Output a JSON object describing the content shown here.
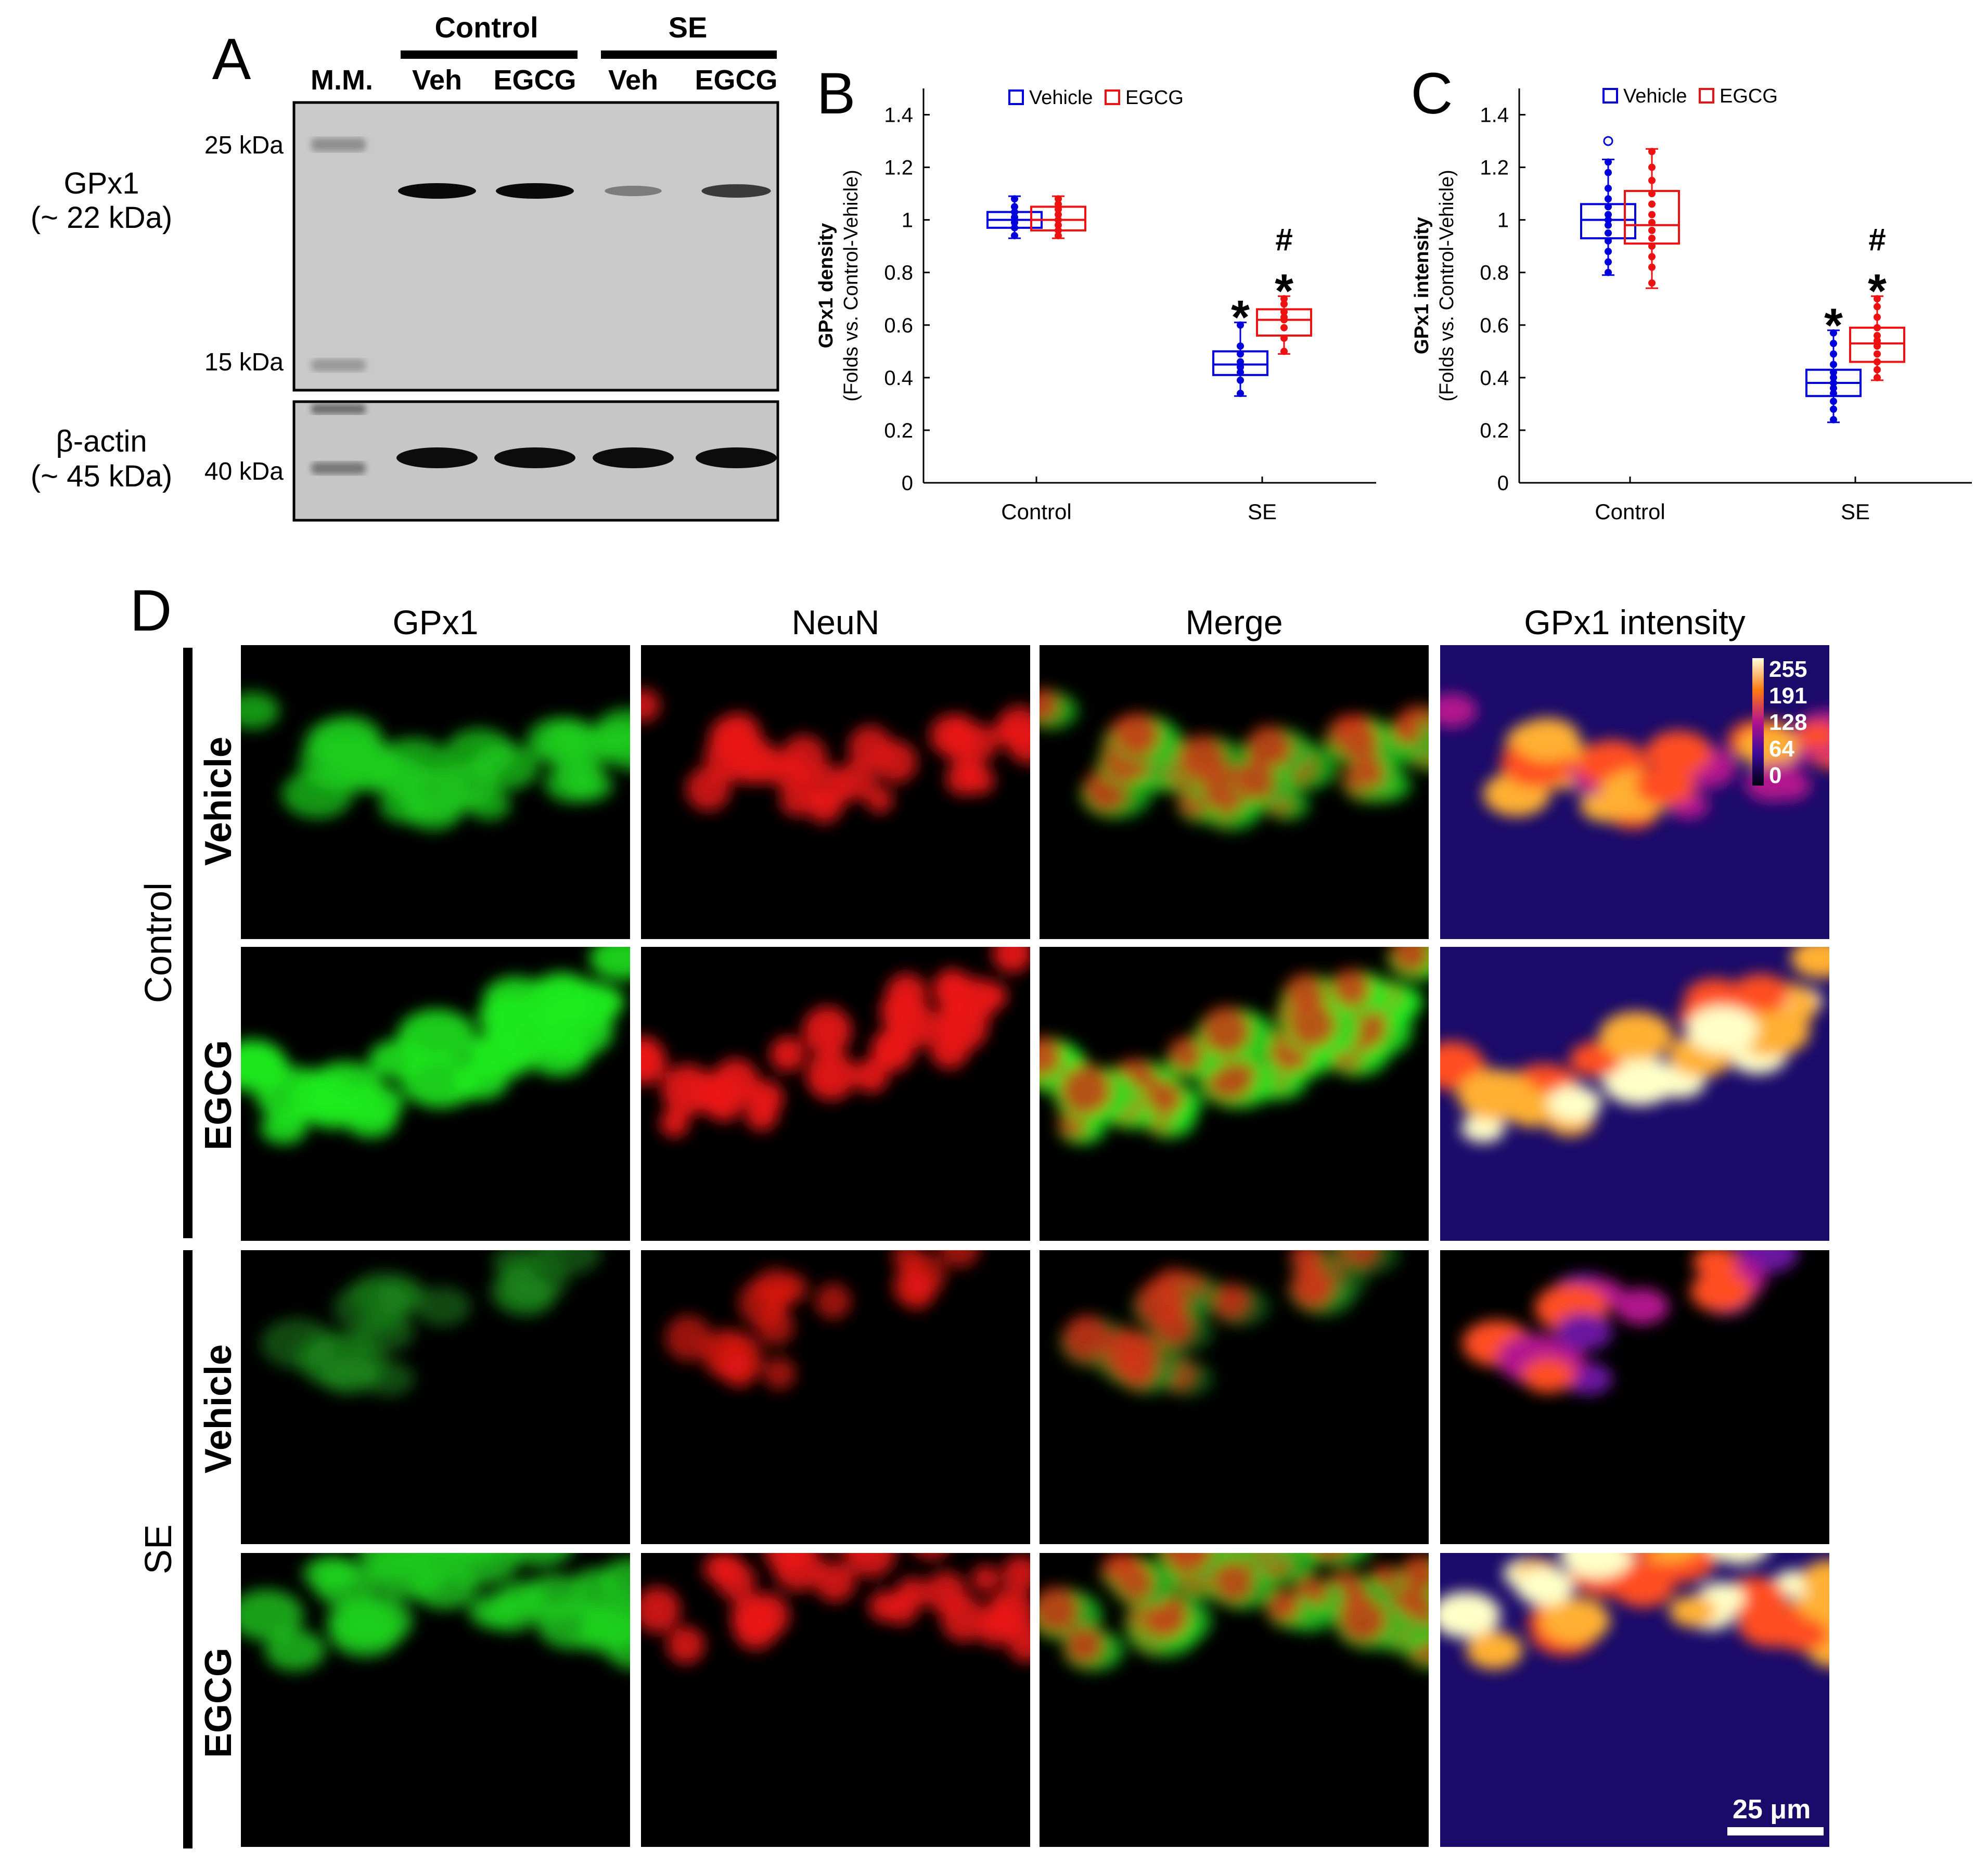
{
  "panel_labels": {
    "a": "A",
    "b": "B",
    "c": "C",
    "d": "D"
  },
  "blot": {
    "mm_label": "M.M.",
    "groups": [
      "Control",
      "SE"
    ],
    "lanes": [
      "Veh",
      "EGCG",
      "Veh",
      "EGCG"
    ],
    "markers": [
      "25 kDa",
      "15 kDa",
      "40 kDa"
    ],
    "gpx1_label_1": "GPx1",
    "gpx1_label_2": "(~ 22 kDa)",
    "actin_label_1": "β-actin",
    "actin_label_2": "(~ 45 kDa)",
    "gpx1_band_relative": [
      1.0,
      1.0,
      0.4,
      0.75
    ],
    "actin_band_relative": [
      1.0,
      1.0,
      1.0,
      1.0
    ]
  },
  "colors": {
    "vehicle": "#0000dd",
    "egcg": "#ee1111"
  },
  "chart_data": [
    {
      "type": "box",
      "panel": "B",
      "ylabel_1": "GPx1 density",
      "ylabel_2": "(Folds vs. Control-Vehicle)",
      "categories": [
        "Control",
        "SE"
      ],
      "legend": [
        "Vehicle",
        "EGCG"
      ],
      "ylim": [
        0,
        1.5
      ],
      "yticks": [
        "0",
        "0.2",
        "0.4",
        "0.6",
        "0.8",
        "1",
        "1.2",
        "1.4"
      ],
      "series": [
        {
          "name": "Vehicle",
          "boxes": [
            {
              "min": 0.93,
              "q1": 0.97,
              "median": 1.0,
              "q3": 1.03,
              "max": 1.09,
              "points": [
                0.94,
                0.97,
                0.99,
                1.0,
                1.01,
                1.03,
                1.05,
                1.08
              ]
            },
            {
              "min": 0.33,
              "q1": 0.41,
              "median": 0.45,
              "q3": 0.5,
              "max": 0.61,
              "points": [
                0.34,
                0.39,
                0.42,
                0.44,
                0.46,
                0.49,
                0.52,
                0.6
              ]
            }
          ]
        },
        {
          "name": "EGCG",
          "boxes": [
            {
              "min": 0.93,
              "q1": 0.96,
              "median": 1.0,
              "q3": 1.05,
              "max": 1.09,
              "points": [
                0.94,
                0.96,
                0.98,
                1.0,
                1.02,
                1.04,
                1.06,
                1.08
              ]
            },
            {
              "min": 0.49,
              "q1": 0.56,
              "median": 0.62,
              "q3": 0.66,
              "max": 0.71,
              "points": [
                0.5,
                0.55,
                0.59,
                0.62,
                0.63,
                0.65,
                0.68,
                0.7
              ]
            }
          ]
        }
      ],
      "annotations": [
        {
          "category": "SE",
          "series": "Vehicle",
          "text": "*"
        },
        {
          "category": "SE",
          "series": "EGCG",
          "text": "#"
        },
        {
          "category": "SE",
          "series": "EGCG",
          "text": "*"
        }
      ]
    },
    {
      "type": "box",
      "panel": "C",
      "ylabel_1": "GPx1 intensity",
      "ylabel_2": "(Folds vs. Control-Vehicle)",
      "categories": [
        "Control",
        "SE"
      ],
      "legend": [
        "Vehicle",
        "EGCG"
      ],
      "ylim": [
        0,
        1.5
      ],
      "yticks": [
        "0",
        "0.2",
        "0.4",
        "0.6",
        "0.8",
        "1",
        "1.2",
        "1.4"
      ],
      "series": [
        {
          "name": "Vehicle",
          "boxes": [
            {
              "min": 0.79,
              "q1": 0.93,
              "median": 1.0,
              "q3": 1.06,
              "max": 1.23,
              "outliers": [
                1.3
              ],
              "points": [
                0.8,
                0.84,
                0.88,
                0.92,
                0.95,
                0.98,
                1.0,
                1.02,
                1.05,
                1.08,
                1.12,
                1.18,
                1.22
              ]
            },
            {
              "min": 0.23,
              "q1": 0.33,
              "median": 0.38,
              "q3": 0.43,
              "max": 0.58,
              "points": [
                0.24,
                0.28,
                0.31,
                0.34,
                0.36,
                0.38,
                0.4,
                0.42,
                0.45,
                0.49,
                0.53,
                0.57
              ]
            }
          ]
        },
        {
          "name": "EGCG",
          "boxes": [
            {
              "min": 0.74,
              "q1": 0.91,
              "median": 0.98,
              "q3": 1.11,
              "max": 1.27,
              "points": [
                0.76,
                0.82,
                0.86,
                0.9,
                0.93,
                0.96,
                0.99,
                1.02,
                1.06,
                1.1,
                1.15,
                1.2,
                1.26
              ]
            },
            {
              "min": 0.39,
              "q1": 0.46,
              "median": 0.53,
              "q3": 0.59,
              "max": 0.71,
              "points": [
                0.4,
                0.43,
                0.46,
                0.49,
                0.52,
                0.54,
                0.56,
                0.59,
                0.63,
                0.67,
                0.7
              ]
            }
          ]
        }
      ],
      "annotations": [
        {
          "category": "SE",
          "series": "Vehicle",
          "text": "*"
        },
        {
          "category": "SE",
          "series": "EGCG",
          "text": "#"
        },
        {
          "category": "SE",
          "series": "EGCG",
          "text": "*"
        }
      ]
    }
  ],
  "micrographs": {
    "columns": [
      "GPx1",
      "NeuN",
      "Merge",
      "GPx1 intensity"
    ],
    "rows": [
      "Vehicle",
      "EGCG",
      "Vehicle",
      "EGCG"
    ],
    "groups": [
      "Control",
      "SE"
    ],
    "row_levels": [
      0.7,
      0.95,
      0.25,
      0.75
    ],
    "colorbar_labels": [
      "255",
      "191",
      "128",
      "64",
      "0"
    ],
    "scale_bar": "25 μm"
  }
}
